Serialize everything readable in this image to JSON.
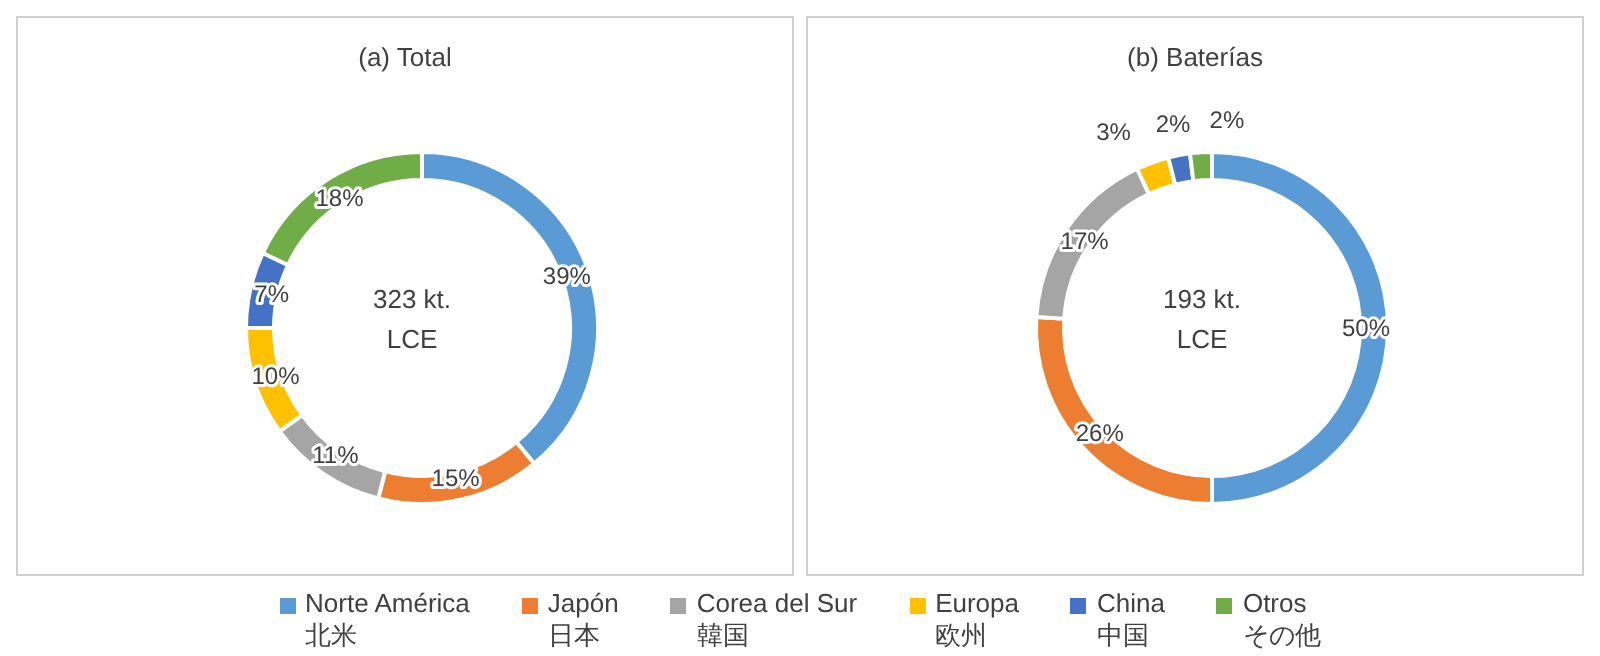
{
  "chart_data": [
    {
      "type": "donut",
      "title": "(a) Total",
      "categories": [
        "Norte América\n北米",
        "Japón\n日本",
        "Corea del Sur\n韓国",
        "Europa\n欧州",
        "China\n中国",
        "Otros\nその他"
      ],
      "values": [
        39,
        15,
        11,
        10,
        7,
        18
      ],
      "value_labels": [
        "39%",
        "15%",
        "11%",
        "10%",
        "7%",
        "18%"
      ],
      "colors": [
        "#5b9bd5",
        "#ed7d31",
        "#a5a5a5",
        "#ffc000",
        "#4472c4",
        "#70ad47"
      ],
      "annotations": [
        "323 kt.\nLCE"
      ],
      "legend": "bottom"
    },
    {
      "type": "donut",
      "title": "(b) Baterías",
      "values": [
        50,
        26,
        17,
        3,
        2,
        2
      ],
      "value_labels": [
        "50%",
        "26%",
        "17%",
        "3%",
        "2%",
        "2%"
      ],
      "colors": [
        "#5b9bd5",
        "#ed7d31",
        "#a5a5a5",
        "#ffc000",
        "#4472c4",
        "#70ad47"
      ],
      "annotations": [
        "193 kt.\nLCE"
      ]
    }
  ]
}
